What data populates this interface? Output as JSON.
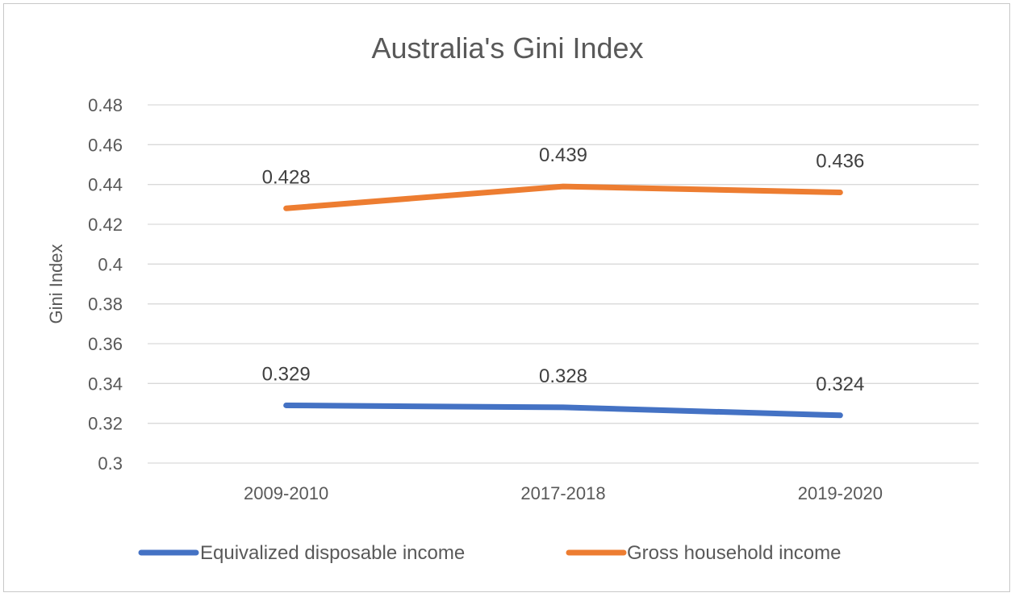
{
  "chart_data": {
    "type": "line",
    "title": "Australia's Gini Index",
    "xlabel": "",
    "ylabel": "Gini Index",
    "categories": [
      "2009-2010",
      "2017-2018",
      "2019-2020"
    ],
    "ylim": [
      0.3,
      0.48
    ],
    "yticks": [
      "0.3",
      "0.32",
      "0.34",
      "0.36",
      "0.38",
      "0.4",
      "0.42",
      "0.44",
      "0.46",
      "0.48"
    ],
    "grid": true,
    "legend": "bottom",
    "series": [
      {
        "name": "Equivalized disposable income",
        "values": [
          0.329,
          0.328,
          0.324
        ],
        "labels": [
          "0.329",
          "0.328",
          "0.324"
        ],
        "color": "#4472c4"
      },
      {
        "name": "Gross household income",
        "values": [
          0.428,
          0.439,
          0.436
        ],
        "labels": [
          "0.428",
          "0.439",
          "0.436"
        ],
        "color": "#ed7d31"
      }
    ]
  }
}
